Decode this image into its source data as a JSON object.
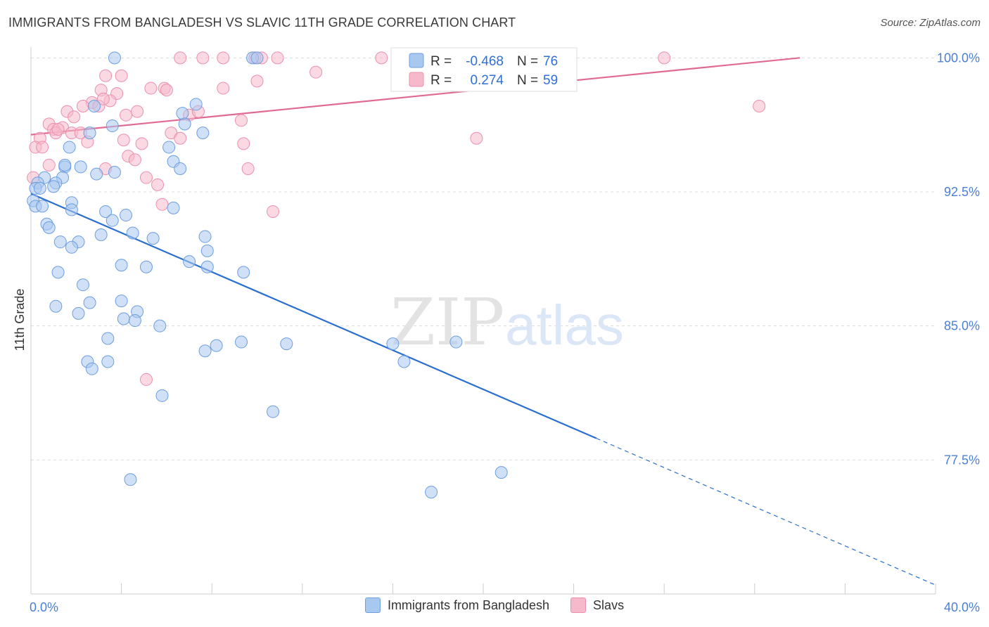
{
  "title": "IMMIGRANTS FROM BANGLADESH VS SLAVIC 11TH GRADE CORRELATION CHART",
  "source": "Source: ZipAtlas.com",
  "watermark": {
    "zip": "ZIP",
    "atlas": "atlas"
  },
  "colors": {
    "blue_fill": "#a9c8f0",
    "blue_stroke": "#6c9ee0",
    "blue_line": "#2a6fd0",
    "pink_fill": "#f6b9cc",
    "pink_stroke": "#ec8fae",
    "pink_line": "#e06a93",
    "grid": "#dcdcdc",
    "tick_label": "#4a7fd6"
  },
  "legend": {
    "rows": [
      {
        "r_label": "R =",
        "r_value": "-0.468",
        "n_label": "N =",
        "n_value": "76"
      },
      {
        "r_label": "R =",
        "r_value": "0.274",
        "n_label": "N =",
        "n_value": "59"
      }
    ]
  },
  "chart_data": {
    "type": "scatter",
    "title": "IMMIGRANTS FROM BANGLADESH VS SLAVIC 11TH GRADE CORRELATION CHART",
    "xlabel": "",
    "ylabel": "11th Grade",
    "xlim": [
      0,
      40
    ],
    "ylim": [
      70,
      100.8
    ],
    "x_tick_labels": [
      "0.0%",
      "40.0%"
    ],
    "y_ticks": [
      100.0,
      92.5,
      85.0,
      77.5
    ],
    "y_tick_labels": [
      "100.0%",
      "92.5%",
      "85.0%",
      "77.5%"
    ],
    "grid": true,
    "legend_placement": "top-center",
    "series": [
      {
        "name": "Immigrants from Bangladesh",
        "color": "#a9c8f0",
        "r": -0.468,
        "n": 76,
        "trend": {
          "x0": 0,
          "y0": 92.4,
          "x1": 40,
          "y1": 70.5,
          "solid_until_x": 25
        },
        "points": [
          [
            3.7,
            100
          ],
          [
            9.8,
            100
          ],
          [
            10.0,
            100
          ],
          [
            7.3,
            97.4
          ],
          [
            2.8,
            97.3
          ],
          [
            6.7,
            96.9
          ],
          [
            3.6,
            96.2
          ],
          [
            6.8,
            96.3
          ],
          [
            7.6,
            95.8
          ],
          [
            2.6,
            95.8
          ],
          [
            1.7,
            95.0
          ],
          [
            6.1,
            95.0
          ],
          [
            6.3,
            94.2
          ],
          [
            1.5,
            93.9
          ],
          [
            2.2,
            93.9
          ],
          [
            6.6,
            93.8
          ],
          [
            0.6,
            93.3
          ],
          [
            1.4,
            93.3
          ],
          [
            3.7,
            93.6
          ],
          [
            2.9,
            93.5
          ],
          [
            1.1,
            93.0
          ],
          [
            0.3,
            93.0
          ],
          [
            0.2,
            92.7
          ],
          [
            0.4,
            92.7
          ],
          [
            1.0,
            92.8
          ],
          [
            0.1,
            92.0
          ],
          [
            1.8,
            91.9
          ],
          [
            0.2,
            91.7
          ],
          [
            0.5,
            91.7
          ],
          [
            1.8,
            91.5
          ],
          [
            3.3,
            91.4
          ],
          [
            4.2,
            91.2
          ],
          [
            6.3,
            91.6
          ],
          [
            0.7,
            90.7
          ],
          [
            0.8,
            90.5
          ],
          [
            3.6,
            90.9
          ],
          [
            4.5,
            90.2
          ],
          [
            3.1,
            90.1
          ],
          [
            5.4,
            89.9
          ],
          [
            7.7,
            90.0
          ],
          [
            1.3,
            89.7
          ],
          [
            2.1,
            89.7
          ],
          [
            1.8,
            89.4
          ],
          [
            7.8,
            89.2
          ],
          [
            7.0,
            88.6
          ],
          [
            4.0,
            88.4
          ],
          [
            5.1,
            88.3
          ],
          [
            7.8,
            88.3
          ],
          [
            9.4,
            88.0
          ],
          [
            1.2,
            88.0
          ],
          [
            2.3,
            87.3
          ],
          [
            4.0,
            86.4
          ],
          [
            2.6,
            86.3
          ],
          [
            1.1,
            86.1
          ],
          [
            4.7,
            85.8
          ],
          [
            2.1,
            85.7
          ],
          [
            4.1,
            85.4
          ],
          [
            5.7,
            85.0
          ],
          [
            3.4,
            84.3
          ],
          [
            8.2,
            83.9
          ],
          [
            9.3,
            84.1
          ],
          [
            11.3,
            84.0
          ],
          [
            7.7,
            83.6
          ],
          [
            16.0,
            84.0
          ],
          [
            18.8,
            84.1
          ],
          [
            2.5,
            83.0
          ],
          [
            3.4,
            83.0
          ],
          [
            16.5,
            83.0
          ],
          [
            2.7,
            82.6
          ],
          [
            5.8,
            81.1
          ],
          [
            10.7,
            80.2
          ],
          [
            4.4,
            76.4
          ],
          [
            20.8,
            76.8
          ],
          [
            17.7,
            75.7
          ],
          [
            4.6,
            85.3
          ],
          [
            1.5,
            94.0
          ]
        ]
      },
      {
        "name": "Slavs",
        "color": "#f6b9cc",
        "r": 0.274,
        "n": 59,
        "trend": {
          "x0": 0,
          "y0": 95.7,
          "x1": 34,
          "y1": 100
        },
        "points": [
          [
            6.6,
            100
          ],
          [
            7.6,
            100
          ],
          [
            8.5,
            100
          ],
          [
            9.9,
            100
          ],
          [
            10.2,
            100
          ],
          [
            10.9,
            100
          ],
          [
            15.5,
            100
          ],
          [
            28.0,
            100
          ],
          [
            3.3,
            99.0
          ],
          [
            4.0,
            99.0
          ],
          [
            12.6,
            99.2
          ],
          [
            10.0,
            98.7
          ],
          [
            5.3,
            98.3
          ],
          [
            5.9,
            98.3
          ],
          [
            6.0,
            98.2
          ],
          [
            8.5,
            98.3
          ],
          [
            3.1,
            98.2
          ],
          [
            3.8,
            98.0
          ],
          [
            2.7,
            97.5
          ],
          [
            3.5,
            97.6
          ],
          [
            2.3,
            97.3
          ],
          [
            3.0,
            97.3
          ],
          [
            7.0,
            96.8
          ],
          [
            7.4,
            97.0
          ],
          [
            1.6,
            97.0
          ],
          [
            4.7,
            97.0
          ],
          [
            4.2,
            96.8
          ],
          [
            1.9,
            96.7
          ],
          [
            0.8,
            96.3
          ],
          [
            1.4,
            96.1
          ],
          [
            9.3,
            96.5
          ],
          [
            1.0,
            96.0
          ],
          [
            1.1,
            95.8
          ],
          [
            1.8,
            95.8
          ],
          [
            2.2,
            95.8
          ],
          [
            6.2,
            95.8
          ],
          [
            0.4,
            95.5
          ],
          [
            2.5,
            95.3
          ],
          [
            4.1,
            95.4
          ],
          [
            6.6,
            95.5
          ],
          [
            9.4,
            95.2
          ],
          [
            4.9,
            95.2
          ],
          [
            19.7,
            95.5
          ],
          [
            0.2,
            95.0
          ],
          [
            0.5,
            95.0
          ],
          [
            4.3,
            94.5
          ],
          [
            4.6,
            94.3
          ],
          [
            0.8,
            94.0
          ],
          [
            3.3,
            93.8
          ],
          [
            9.6,
            93.8
          ],
          [
            0.1,
            93.3
          ],
          [
            5.1,
            93.3
          ],
          [
            5.6,
            92.9
          ],
          [
            5.8,
            91.8
          ],
          [
            10.7,
            91.4
          ],
          [
            5.1,
            82.0
          ],
          [
            32.2,
            97.3
          ],
          [
            1.2,
            96.0
          ],
          [
            3.2,
            97.7
          ]
        ]
      }
    ]
  }
}
